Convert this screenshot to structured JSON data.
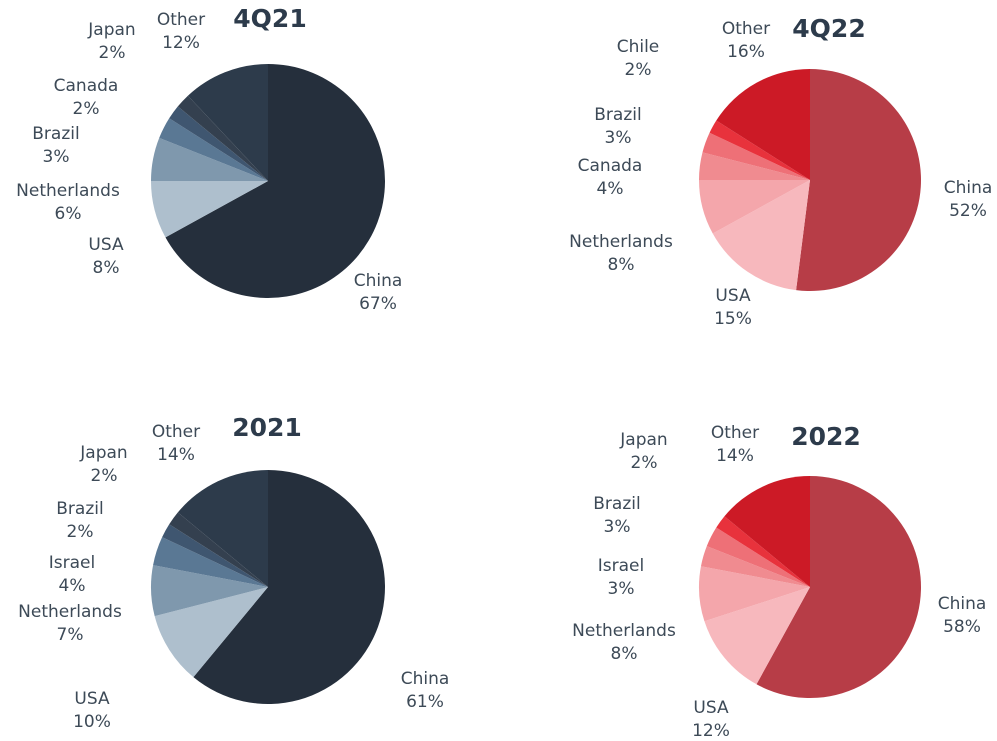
{
  "chart_data": [
    {
      "type": "pie",
      "title": "4Q21",
      "categories": [
        "China",
        "USA",
        "Netherlands",
        "Brazil",
        "Canada",
        "Japan",
        "Other"
      ],
      "values": [
        67,
        8,
        6,
        3,
        2,
        2,
        12
      ],
      "value_labels": [
        "67%",
        "8%",
        "6%",
        "3%",
        "2%",
        "2%",
        "12%"
      ],
      "colors": [
        "#252f3c",
        "#aebfcd",
        "#7f98ad",
        "#5a7894",
        "#3f5670",
        "#34404f",
        "#2d3b4b"
      ]
    },
    {
      "type": "pie",
      "title": "4Q22",
      "categories": [
        "China",
        "USA",
        "Netherlands",
        "Canada",
        "Brazil",
        "Chile",
        "Other"
      ],
      "values": [
        52,
        15,
        8,
        4,
        3,
        2,
        16
      ],
      "value_labels": [
        "52%",
        "15%",
        "8%",
        "4%",
        "3%",
        "2%",
        "16%"
      ],
      "colors": [
        "#b73d47",
        "#f7b8bd",
        "#f4a6ab",
        "#f08b90",
        "#ee7077",
        "#e8323c",
        "#cc1a26"
      ]
    },
    {
      "type": "pie",
      "title": "2021",
      "categories": [
        "China",
        "USA",
        "Netherlands",
        "Israel",
        "Brazil",
        "Japan",
        "Other"
      ],
      "values": [
        61,
        10,
        7,
        4,
        2,
        2,
        14
      ],
      "value_labels": [
        "61%",
        "10%",
        "7%",
        "4%",
        "2%",
        "2%",
        "14%"
      ],
      "colors": [
        "#252f3c",
        "#aebfcd",
        "#7f98ad",
        "#5a7894",
        "#3f5670",
        "#34404f",
        "#2d3b4b"
      ]
    },
    {
      "type": "pie",
      "title": "2022",
      "categories": [
        "China",
        "USA",
        "Netherlands",
        "Israel",
        "Brazil",
        "Japan",
        "Other"
      ],
      "values": [
        58,
        12,
        8,
        3,
        3,
        2,
        14
      ],
      "value_labels": [
        "58%",
        "12%",
        "8%",
        "3%",
        "3%",
        "2%",
        "14%"
      ],
      "colors": [
        "#b73d47",
        "#f7b8bd",
        "#f4a6ab",
        "#f08b90",
        "#ee7077",
        "#e8323c",
        "#cc1a26"
      ]
    }
  ]
}
